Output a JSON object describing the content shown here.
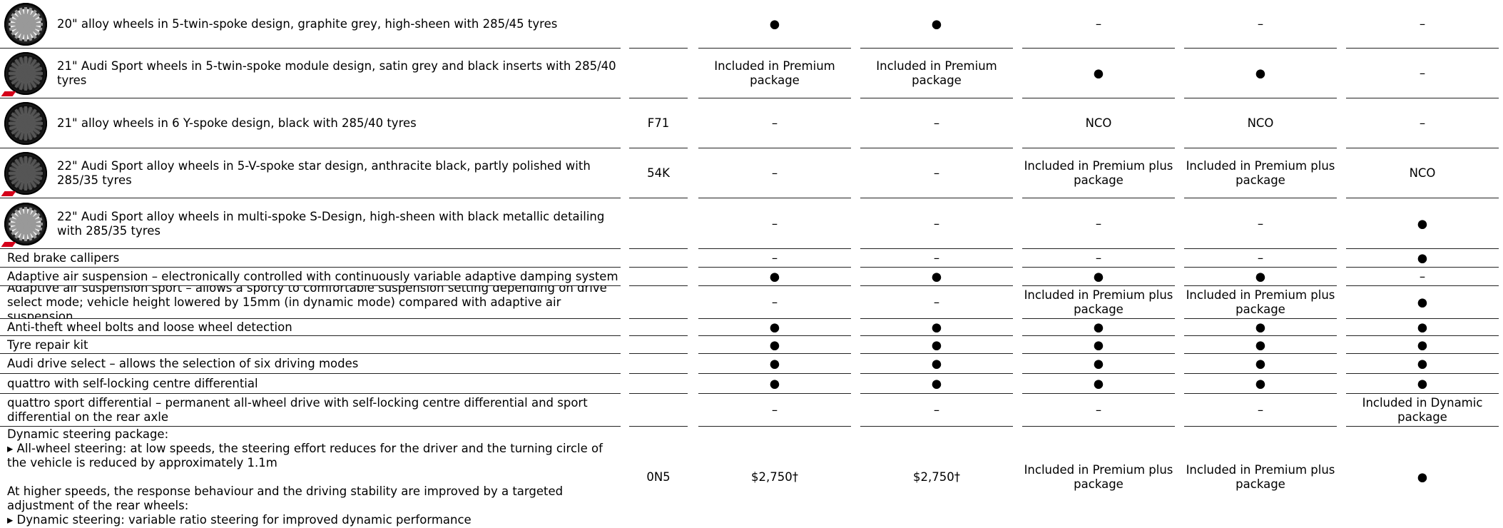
{
  "rows": [
    {
      "desc": "20\" alloy wheels in 5-twin-spoke design, graphite grey, high-sheen with 285/45 tyres",
      "code": "",
      "cols": [
        "●",
        "●",
        "–",
        "–",
        "–"
      ]
    },
    {
      "desc": "21\" Audi Sport wheels in 5-twin-spoke module design, satin grey and black inserts with 285/40 tyres",
      "code": "",
      "cols": [
        "Included in Premium package",
        "Included in Premium package",
        "●",
        "●",
        "–"
      ]
    },
    {
      "desc": "21\" alloy wheels in 6 Y-spoke design, black with 285/40 tyres",
      "code": "F71",
      "cols": [
        "–",
        "–",
        "NCO",
        "NCO",
        "–"
      ]
    },
    {
      "desc": "22\" Audi Sport alloy wheels in 5-V-spoke star design, anthracite black, partly polished with 285/35 tyres",
      "code": "54K",
      "cols": [
        "–",
        "–",
        "Included in Premium plus package",
        "Included in Premium plus package",
        "NCO"
      ]
    },
    {
      "desc": "22\" Audi Sport alloy wheels in multi-spoke S-Design, high-sheen with black metallic detailing with 285/35 tyres",
      "code": "",
      "cols": [
        "–",
        "–",
        "–",
        "–",
        "●"
      ]
    },
    {
      "desc": "Red brake callipers",
      "code": "",
      "cols": [
        "–",
        "–",
        "–",
        "–",
        "●"
      ]
    },
    {
      "desc": "Adaptive air suspension – electronically controlled with continuously variable adaptive damping system",
      "code": "",
      "cols": [
        "●",
        "●",
        "●",
        "●",
        "–"
      ]
    },
    {
      "desc": "Adaptive air suspension sport – allows a sporty to comfortable suspension setting depending on drive select mode; vehicle height lowered by 15mm (in dynamic mode) compared with adaptive air suspension",
      "code": "",
      "cols": [
        "–",
        "–",
        "Included in Premium plus package",
        "Included in Premium plus package",
        "●"
      ]
    },
    {
      "desc": "Anti-theft wheel bolts and loose wheel detection",
      "code": "",
      "cols": [
        "●",
        "●",
        "●",
        "●",
        "●"
      ]
    },
    {
      "desc": "Tyre repair kit",
      "code": "",
      "cols": [
        "●",
        "●",
        "●",
        "●",
        "●"
      ]
    },
    {
      "desc": "Audi drive select – allows the selection of six driving modes",
      "code": "",
      "cols": [
        "●",
        "●",
        "●",
        "●",
        "●"
      ]
    },
    {
      "desc": "quattro with self-locking centre differential",
      "code": "",
      "cols": [
        "●",
        "●",
        "●",
        "●",
        "●"
      ]
    },
    {
      "desc": "quattro sport differential – permanent all-wheel drive with self-locking centre differential and sport differential on the rear axle",
      "code": "",
      "cols": [
        "–",
        "–",
        "–",
        "–",
        "Included in Dynamic package"
      ]
    },
    {
      "desc": "Dynamic steering package:\n▸ All-wheel steering: at low speeds, the steering effort reduces for the driver and the turning circle of the vehicle is reduced by approximately 1.1m\n\nAt higher speeds, the response behaviour and the driving stability are improved by a targeted adjustment of the rear wheels:\n▸ Dynamic steering: variable ratio steering for improved dynamic performance",
      "code": "0N5",
      "cols": [
        "$2,750†",
        "$2,750†",
        "Included in Premium plus package",
        "Included in Premium plus package",
        "●"
      ]
    }
  ]
}
